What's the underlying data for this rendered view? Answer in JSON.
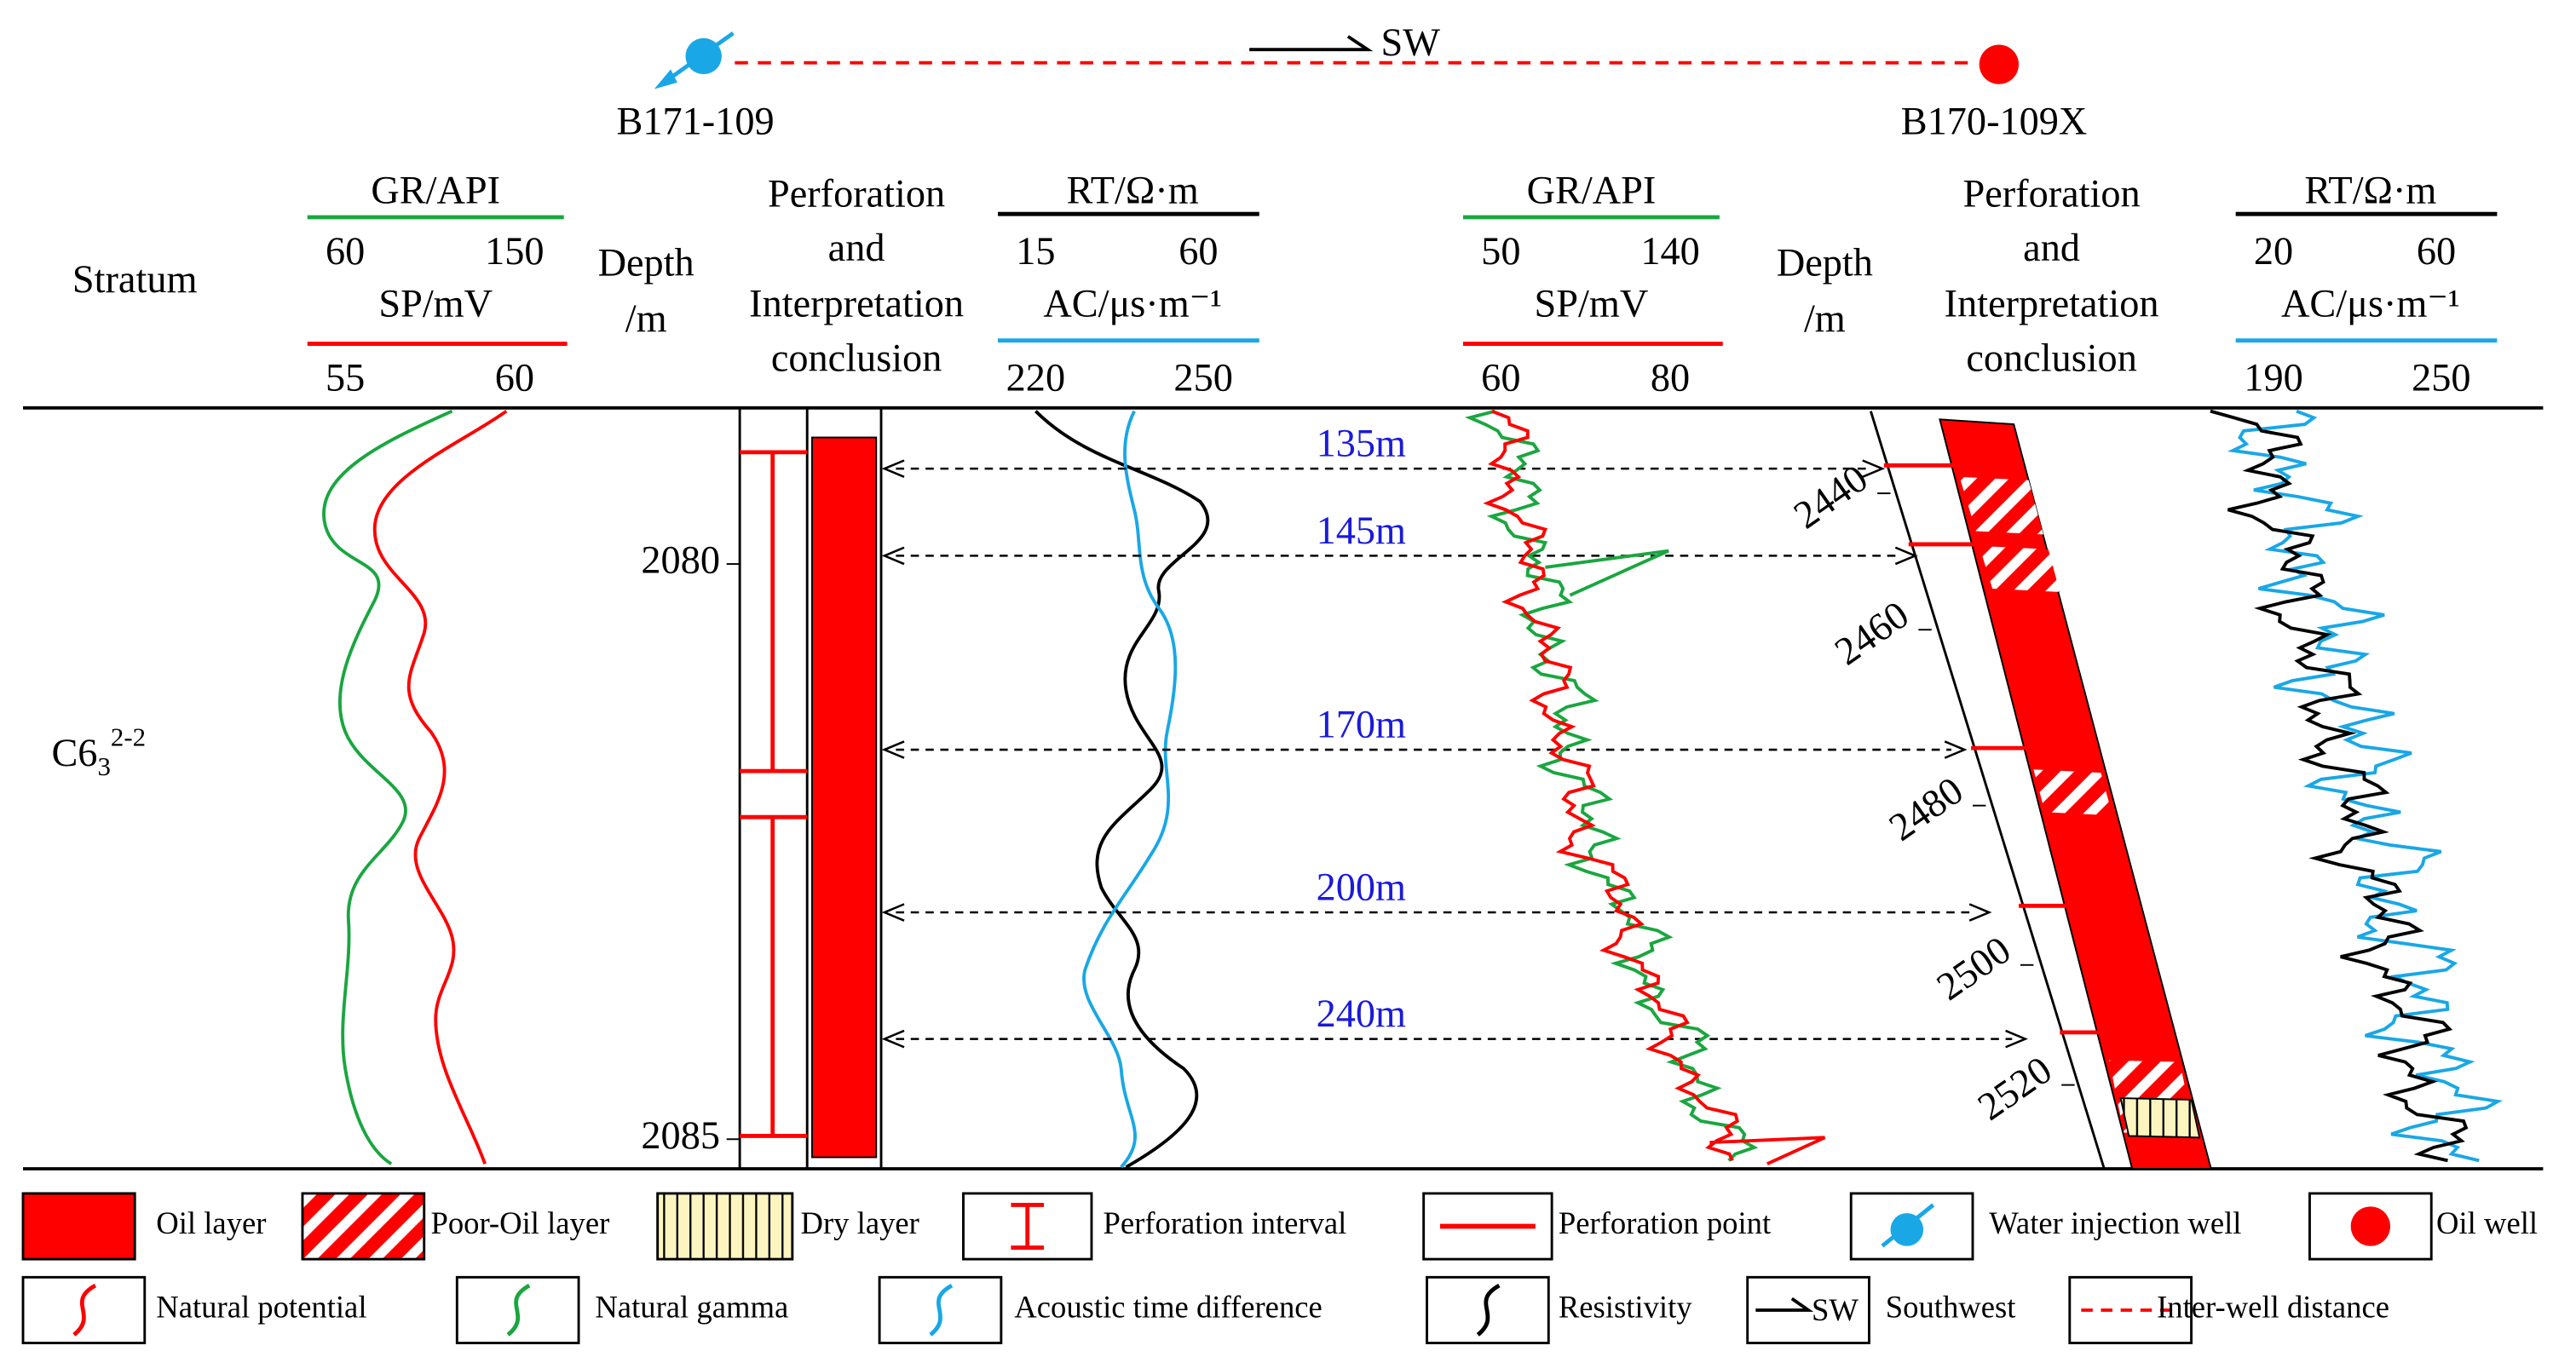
{
  "top": {
    "left_well": "B171-109",
    "right_well": "B170-109X",
    "direction": "SW"
  },
  "header": {
    "stratum": "Stratum",
    "left": {
      "gr": "GR/API",
      "gr_min": "60",
      "gr_max": "150",
      "sp": "SP/mV",
      "sp_min": "55",
      "sp_max": "60",
      "depth": [
        "Depth",
        "/m"
      ],
      "perforation": [
        "Perforation",
        "and",
        "Interpretation",
        "conclusion"
      ],
      "rt": "RT/Ω·m",
      "rt_min": "15",
      "rt_max": "60",
      "ac": "AC/μs·m⁻¹",
      "ac_min": "220",
      "ac_max": "250"
    },
    "right": {
      "gr": "GR/API",
      "gr_min": "50",
      "gr_max": "140",
      "sp": "SP/mV",
      "sp_min": "60",
      "sp_max": "80",
      "depth": [
        "Depth",
        "/m"
      ],
      "perforation": [
        "Perforation",
        "and",
        "Interpretation",
        "conclusion"
      ],
      "rt": "RT/Ω·m",
      "rt_min": "20",
      "rt_max": "60",
      "ac": "AC/μs·m⁻¹",
      "ac_min": "190",
      "ac_max": "250"
    }
  },
  "stratum_label": {
    "base": "C6",
    "sub": "3",
    "sup": "2-2"
  },
  "left_depth_ticks": [
    "2080",
    "2085"
  ],
  "right_depth_ticks": [
    "2440",
    "2460",
    "2480",
    "2500",
    "2520"
  ],
  "distances": [
    "135m",
    "145m",
    "170m",
    "200m",
    "240m"
  ],
  "legend": [
    "Oil layer",
    "Poor-Oil layer",
    "Dry layer",
    "Perforation interval",
    "Perforation point",
    "Water injection well",
    "Oil well",
    "Natural potential",
    "Natural gamma",
    "Acoustic time difference",
    "Resistivity",
    "Southwest",
    "Inter-well distance"
  ],
  "legend_sw": "SW"
}
